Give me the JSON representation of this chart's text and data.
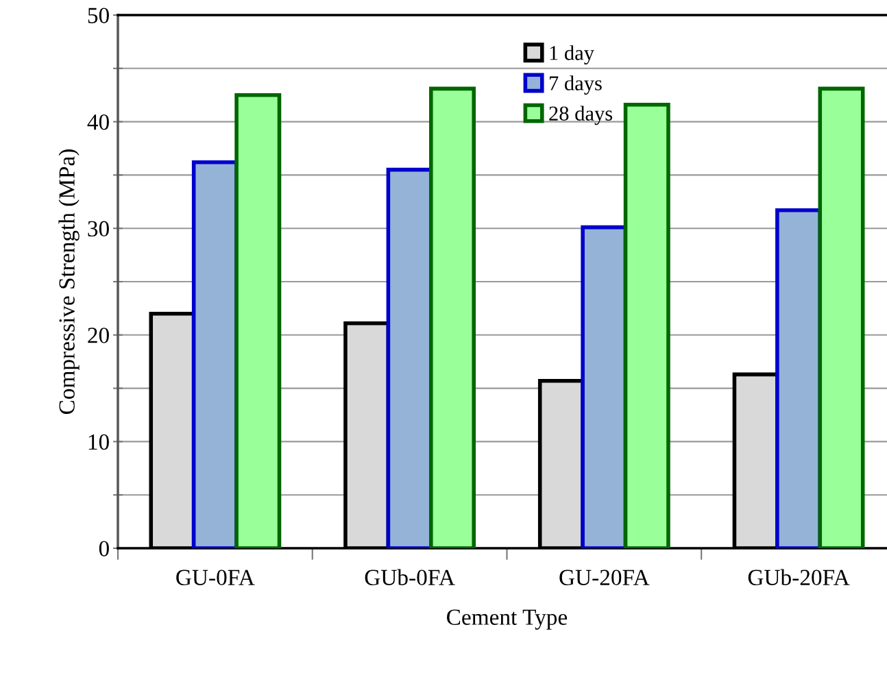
{
  "chart_data": {
    "type": "bar",
    "xlabel": "Cement Type",
    "ylabel": "Compressive Strength (MPa)",
    "categories": [
      "GU-0FA",
      "GUb-0FA",
      "GU-20FA",
      "GUb-20FA"
    ],
    "series": [
      {
        "name": "1 day",
        "color": "#d9d9d9",
        "values": [
          22.0,
          21.1,
          15.7,
          16.3
        ]
      },
      {
        "name": "7 days",
        "color": "#95b3d7",
        "values": [
          36.2,
          35.5,
          30.1,
          31.7
        ]
      },
      {
        "name": "28 days",
        "color": "#99ff99",
        "values": [
          42.5,
          43.1,
          41.6,
          43.1
        ]
      }
    ],
    "ylim": [
      0,
      50
    ],
    "yticks": [
      0,
      {
        "value": 5,
        "label": null
      },
      10,
      {
        "value": 15,
        "label": null
      },
      20,
      {
        "value": 25,
        "label": null
      },
      30,
      {
        "value": 35,
        "label": null
      },
      40,
      {
        "value": 45,
        "label": null
      },
      50
    ],
    "grid": "y",
    "legend": "top"
  }
}
